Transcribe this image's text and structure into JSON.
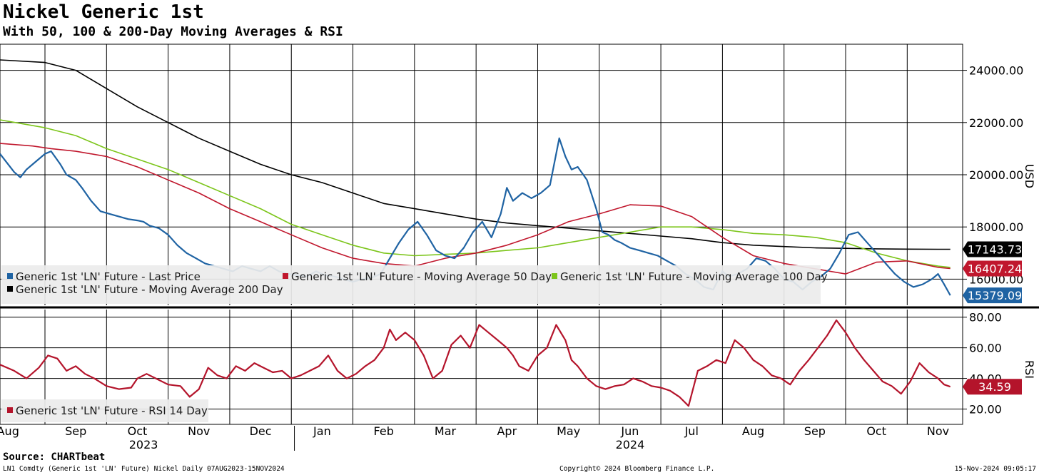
{
  "title": "Nickel Generic 1st",
  "subtitle": "With 50, 100 & 200-Day Moving Averages & RSI",
  "source": "Source: CHARTbeat",
  "footer": {
    "left": "LN1 Comdty (Generic 1st 'LN' Future) Nickel  Daily 07AUG2023-15NOV2024",
    "center": "Copyright© 2024 Bloomberg Finance L.P.",
    "right": "15-Nov-2024 09:05:17"
  },
  "colors": {
    "price": "#1f63a3",
    "ma50": "#c0172d",
    "ma100": "#7cc51a",
    "ma200": "#000000",
    "rsi": "#b4142b"
  },
  "chart_data": [
    {
      "type": "line",
      "ylabel": "USD",
      "ylim": [
        15000,
        25000
      ],
      "yticks": [
        24000,
        22000,
        20000,
        18000,
        16000
      ],
      "ytick_labels": [
        "24000.00",
        "22000.00",
        "20000.00",
        "18000.00",
        "16000.00"
      ],
      "x_month_labels": [
        "Aug",
        "Sep",
        "Oct",
        "Nov",
        "Dec",
        "Jan",
        "Feb",
        "Mar",
        "Apr",
        "May",
        "Jun",
        "Jul",
        "Aug",
        "Sep",
        "Oct",
        "Nov"
      ],
      "x_month_index": [
        -0.1,
        1,
        2,
        3,
        4,
        5,
        6,
        7,
        8,
        9,
        10,
        11,
        12,
        13,
        14,
        15
      ],
      "x_year_labels": [
        "2023",
        "2024"
      ],
      "x_range": [
        -0.23,
        15.4
      ],
      "legend_placement": "bottom-left",
      "grid": true,
      "series": [
        {
          "name": "Generic 1st 'LN' Future - Last Price",
          "color_key": "price",
          "last_label": "15379.09",
          "x": [
            -0.23,
            0.0,
            0.1,
            0.2,
            0.3,
            0.4,
            0.5,
            0.6,
            0.75,
            0.85,
            1.0,
            1.1,
            1.25,
            1.4,
            1.55,
            1.7,
            1.85,
            2.0,
            2.1,
            2.2,
            2.35,
            2.5,
            2.65,
            2.8,
            2.95,
            3.1,
            3.25,
            3.4,
            3.55,
            3.7,
            3.85,
            4.0,
            4.15,
            4.3,
            4.45,
            4.6,
            4.75,
            4.9,
            5.05,
            5.2,
            5.35,
            5.5,
            5.65,
            5.8,
            5.95,
            6.1,
            6.25,
            6.4,
            6.55,
            6.7,
            6.85,
            7.0,
            7.15,
            7.3,
            7.45,
            7.6,
            7.75,
            7.9,
            8.0,
            8.1,
            8.25,
            8.4,
            8.55,
            8.7,
            8.85,
            8.95,
            9.05,
            9.15,
            9.3,
            9.45,
            9.55,
            9.65,
            9.75,
            9.85,
            10.0,
            10.15,
            10.3,
            10.45,
            10.6,
            10.75,
            10.9,
            11.05,
            11.2,
            11.35,
            11.5,
            11.6,
            11.75,
            11.9,
            12.05,
            12.2,
            12.35,
            12.5,
            12.65,
            12.8,
            12.95,
            13.1,
            13.25,
            13.4,
            13.55,
            13.7,
            13.85,
            14.0,
            14.15,
            14.3,
            14.45,
            14.6,
            14.75,
            14.9,
            15.0,
            15.1,
            15.2
          ],
          "y": [
            20800,
            20100,
            19900,
            20200,
            20400,
            20600,
            20800,
            20900,
            20400,
            20000,
            19800,
            19500,
            19000,
            18600,
            18500,
            18400,
            18300,
            18250,
            18200,
            18050,
            17950,
            17700,
            17300,
            17000,
            16800,
            16600,
            16500,
            16400,
            16300,
            16500,
            16400,
            16300,
            16500,
            16300,
            16200,
            16150,
            16100,
            16300,
            16150,
            16100,
            16000,
            15900,
            16000,
            16050,
            16200,
            16800,
            17400,
            17900,
            18200,
            17700,
            17100,
            16900,
            16800,
            17200,
            17800,
            18200,
            17600,
            18500,
            19500,
            19000,
            19300,
            19100,
            19300,
            19600,
            21400,
            20700,
            20200,
            20300,
            19800,
            18700,
            17800,
            17700,
            17500,
            17400,
            17200,
            17100,
            17000,
            16900,
            16700,
            16500,
            16200,
            16000,
            15700,
            15600,
            16300,
            16100,
            16200,
            16400,
            16800,
            16700,
            16400,
            16000,
            15900,
            15600,
            15900,
            16100,
            16400,
            17000,
            17700,
            17800,
            17400,
            17000,
            16600,
            16200,
            15900,
            15700,
            15800,
            16000,
            16200,
            15800,
            15379.09
          ]
        },
        {
          "name": "Generic 1st 'LN' Future - Moving Average 50 Day",
          "color_key": "ma50",
          "last_label": "16407.24",
          "x": [
            -0.23,
            0.3,
            0.6,
            1.0,
            1.5,
            2.0,
            2.5,
            3.0,
            3.5,
            4.0,
            4.5,
            5.0,
            5.5,
            6.0,
            6.5,
            7.0,
            7.5,
            8.0,
            8.5,
            9.0,
            9.5,
            10.0,
            10.5,
            11.0,
            11.5,
            12.0,
            12.5,
            13.0,
            13.5,
            14.0,
            14.5,
            15.0,
            15.2
          ],
          "y": [
            21200,
            21100,
            21000,
            20900,
            20700,
            20300,
            19800,
            19300,
            18700,
            18200,
            17700,
            17200,
            16800,
            16600,
            16500,
            16800,
            17000,
            17300,
            17700,
            18200,
            18500,
            18850,
            18800,
            18400,
            17600,
            16900,
            16600,
            16400,
            16200,
            16650,
            16700,
            16450,
            16407.24
          ]
        },
        {
          "name": "Generic 1st 'LN' Future - Moving Average 100 Day",
          "color_key": "ma100",
          "last_label": "",
          "x": [
            -0.23,
            0.5,
            1.0,
            1.5,
            2.0,
            2.5,
            3.0,
            3.5,
            4.0,
            4.5,
            5.0,
            5.5,
            6.0,
            6.5,
            7.0,
            7.5,
            8.0,
            8.5,
            9.0,
            9.5,
            10.0,
            10.5,
            11.0,
            11.5,
            12.0,
            12.5,
            13.0,
            13.5,
            14.0,
            14.5,
            15.0,
            15.2
          ],
          "y": [
            22100,
            21800,
            21500,
            21000,
            20600,
            20200,
            19700,
            19200,
            18700,
            18100,
            17700,
            17300,
            17000,
            16900,
            16950,
            17000,
            17100,
            17200,
            17400,
            17600,
            17800,
            18000,
            18000,
            17900,
            17750,
            17700,
            17600,
            17400,
            17000,
            16700,
            16500,
            16450
          ]
        },
        {
          "name": "Generic 1st 'LN' Future - Moving Average 200 Day",
          "color_key": "ma200",
          "last_label": "17143.73",
          "x": [
            -0.23,
            0.5,
            1.0,
            1.5,
            2.0,
            2.5,
            3.0,
            3.5,
            4.0,
            4.5,
            5.0,
            5.5,
            6.0,
            6.5,
            7.0,
            7.5,
            8.0,
            8.5,
            9.0,
            9.5,
            10.0,
            10.5,
            11.0,
            11.5,
            12.0,
            12.5,
            13.0,
            13.5,
            14.0,
            14.5,
            15.0,
            15.2
          ],
          "y": [
            24400,
            24300,
            24000,
            23300,
            22600,
            22000,
            21400,
            20900,
            20400,
            20000,
            19700,
            19300,
            18900,
            18700,
            18500,
            18300,
            18150,
            18050,
            17950,
            17850,
            17750,
            17650,
            17550,
            17400,
            17300,
            17250,
            17200,
            17180,
            17160,
            17150,
            17145,
            17143.73
          ]
        }
      ]
    },
    {
      "type": "line",
      "ylabel": "RSI",
      "ylim": [
        10,
        85
      ],
      "yticks": [
        80,
        60,
        40,
        20
      ],
      "ytick_labels": [
        "80.00",
        "60.00",
        "40.00",
        "20.00"
      ],
      "legend_placement": "bottom-left",
      "grid": true,
      "series": [
        {
          "name": "Generic 1st 'LN' Future - RSI 14 Day",
          "color_key": "rsi",
          "last_label": "34.59",
          "x": [
            -0.23,
            0.0,
            0.2,
            0.4,
            0.55,
            0.7,
            0.85,
            1.0,
            1.15,
            1.3,
            1.5,
            1.7,
            1.9,
            2.0,
            2.15,
            2.3,
            2.5,
            2.7,
            2.85,
            3.0,
            3.15,
            3.3,
            3.45,
            3.6,
            3.75,
            3.9,
            4.05,
            4.2,
            4.35,
            4.5,
            4.65,
            4.8,
            4.95,
            5.1,
            5.25,
            5.4,
            5.55,
            5.7,
            5.85,
            6.0,
            6.1,
            6.2,
            6.35,
            6.5,
            6.65,
            6.8,
            6.95,
            7.1,
            7.25,
            7.4,
            7.55,
            7.7,
            7.85,
            8.0,
            8.1,
            8.2,
            8.35,
            8.5,
            8.65,
            8.8,
            8.95,
            9.05,
            9.15,
            9.3,
            9.45,
            9.6,
            9.75,
            9.9,
            10.05,
            10.2,
            10.35,
            10.5,
            10.65,
            10.8,
            10.95,
            11.1,
            11.25,
            11.4,
            11.55,
            11.7,
            11.85,
            12.0,
            12.15,
            12.3,
            12.45,
            12.6,
            12.75,
            12.9,
            13.05,
            13.2,
            13.35,
            13.5,
            13.65,
            13.8,
            13.95,
            14.1,
            14.25,
            14.4,
            14.55,
            14.7,
            14.85,
            15.0,
            15.1,
            15.2
          ],
          "y": [
            49,
            45,
            40,
            47,
            55,
            53,
            45,
            48,
            43,
            40,
            35,
            33,
            34,
            40,
            43,
            40,
            36,
            35,
            28,
            33,
            47,
            42,
            40,
            48,
            45,
            50,
            47,
            44,
            45,
            40,
            42,
            45,
            48,
            55,
            45,
            40,
            43,
            48,
            52,
            60,
            72,
            65,
            70,
            65,
            55,
            40,
            45,
            62,
            68,
            60,
            75,
            70,
            65,
            60,
            55,
            48,
            45,
            55,
            60,
            75,
            65,
            52,
            48,
            40,
            35,
            33,
            35,
            36,
            40,
            38,
            35,
            34,
            32,
            28,
            22,
            45,
            48,
            52,
            50,
            65,
            60,
            52,
            48,
            42,
            40,
            36,
            45,
            52,
            60,
            68,
            78,
            70,
            60,
            52,
            45,
            38,
            35,
            30,
            38,
            50,
            44,
            40,
            36,
            34.59
          ]
        }
      ]
    }
  ]
}
